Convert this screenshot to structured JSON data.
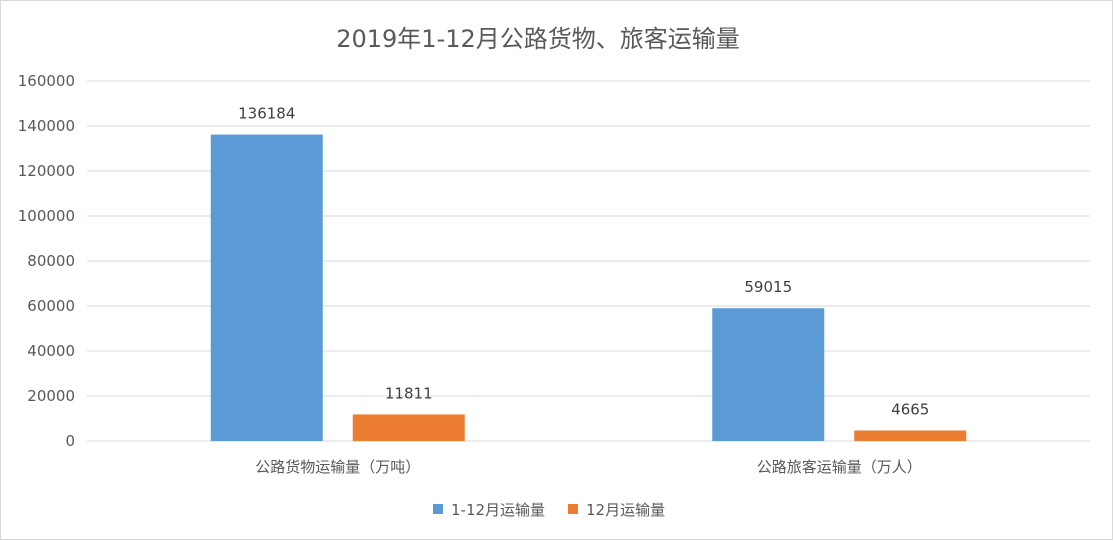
{
  "chart_data": {
    "type": "bar",
    "title": "2019年1-12月公路货物、旅客运输量",
    "xlabel": "",
    "ylabel": "",
    "ylim": [
      0,
      160000
    ],
    "yticks": [
      0,
      20000,
      40000,
      60000,
      80000,
      100000,
      120000,
      140000,
      160000
    ],
    "ytick_labels": [
      "0",
      "20000",
      "40000",
      "60000",
      "80000",
      "100000",
      "120000",
      "140000",
      "160000"
    ],
    "categories": [
      "公路货物运输量（万吨）",
      "公路旅客运输量（万人）"
    ],
    "series": [
      {
        "name": "1-12月运输量",
        "values": [
          136184,
          59015
        ],
        "color": "#5b9bd5"
      },
      {
        "name": "12月运输量",
        "values": [
          11811,
          4665
        ],
        "color": "#ed7d31"
      }
    ],
    "data_labels": true,
    "grid": true,
    "gridline_color": "#d9d9d9",
    "legend_position": "bottom"
  }
}
